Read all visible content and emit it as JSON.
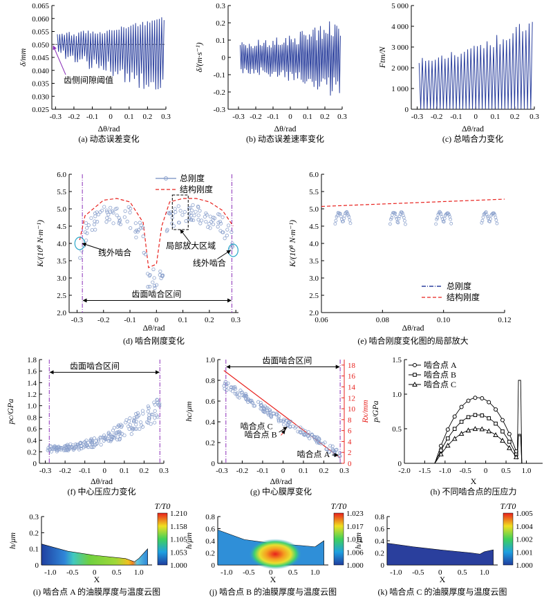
{
  "colors": {
    "series": "#2a3f9d",
    "structural": "#e8201c",
    "dashdot": "#8b2fb8",
    "cyan": "#2aa7c9",
    "axis": "#000000",
    "red_axis": "#e8201c"
  },
  "chart_data": [
    {
      "id": "a",
      "type": "line",
      "caption": "(a) 动态误差变化",
      "xlabel": "Δθ/rad",
      "ylabel": "δ/mm",
      "xlim": [
        -0.32,
        0.3
      ],
      "ylim": [
        0.025,
        0.065
      ],
      "xticks": [
        "-0.3",
        "-0.2",
        "-0.1",
        "0",
        "0.1",
        "0.2",
        "0.3"
      ],
      "yticks": [
        "0.025",
        "0.030",
        "0.035",
        "0.040",
        "0.045",
        "0.050",
        "0.055",
        "0.060",
        "0.065"
      ],
      "threshold": 0.05,
      "annotation": "齿侧间隙阈值",
      "range_x": [
        -0.29,
        0.29
      ],
      "upper_envelope": [
        0.055,
        0.061
      ],
      "lower_envelope": [
        0.045,
        0.027
      ]
    },
    {
      "id": "b",
      "type": "line",
      "caption": "(b) 动态误差速率变化",
      "xlabel": "Δθ/rad",
      "ylabel": "δ̇/(m·s⁻¹)",
      "xlim": [
        -0.36,
        0.3
      ],
      "ylim": [
        -0.3,
        0.3
      ],
      "xticks": [
        "-0.3",
        "-0.2",
        "-0.1",
        "0",
        "0.1",
        "0.2",
        "0.3"
      ],
      "yticks": [
        "-0.3",
        "-0.2",
        "-0.1",
        "0",
        "0.1",
        "0.2",
        "0.3"
      ],
      "range_x": [
        -0.29,
        0.29
      ],
      "amplitude": [
        0.1,
        0.25
      ]
    },
    {
      "id": "c",
      "type": "line",
      "caption": "(c) 总啮合力变化",
      "xlabel": "Δθ/rad",
      "ylabel": "Ftm/N",
      "xlim": [
        -0.33,
        0.3
      ],
      "ylim": [
        0,
        5000
      ],
      "xticks": [
        "-0.3",
        "-0.2",
        "-0.1",
        "0",
        "0.1",
        "0.2",
        "0.3"
      ],
      "yticks": [
        "0",
        "1 000",
        "2 000",
        "3 000",
        "4 000",
        "5 000"
      ],
      "range_x": [
        -0.29,
        0.29
      ],
      "peak_envelope": [
        2500,
        4500
      ]
    },
    {
      "id": "d",
      "type": "line",
      "caption": "(d) 啮合刚度变化",
      "xlabel": "Δθ/rad",
      "ylabel": "K/(10⁸ N·m⁻¹)",
      "xlim": [
        -0.33,
        0.31
      ],
      "ylim": [
        2.0,
        6.0
      ],
      "xticks": [
        "-0.3",
        "-0.2",
        "-0.1",
        "0",
        "0.1",
        "0.2",
        "0.3"
      ],
      "yticks": [
        "2.0",
        "2.5",
        "3.0",
        "3.5",
        "4.0",
        "4.5",
        "5.0",
        "5.5",
        "6.0"
      ],
      "legend": [
        "总刚度",
        "结构刚度"
      ],
      "annotations": [
        "线外啮合",
        "局部放大区域",
        "线外啮合",
        "齿面啮合区间"
      ],
      "mesh_interval": [
        -0.28,
        0.285
      ],
      "structural_x": [
        -0.29,
        -0.27,
        -0.2,
        -0.15,
        -0.1,
        -0.05,
        -0.03,
        0.0,
        0.02,
        0.05,
        0.1,
        0.15,
        0.2,
        0.25,
        0.29
      ],
      "structural_y": [
        4.1,
        4.8,
        5.25,
        5.3,
        5.2,
        4.6,
        3.3,
        3.4,
        4.5,
        5.2,
        5.3,
        5.3,
        5.2,
        4.95,
        4.5
      ]
    },
    {
      "id": "e",
      "type": "scatter",
      "caption": "(e) 啮合刚度变化图的局部放大",
      "xlabel": "Δθ/rad",
      "ylabel": "K/(10⁸ N·m⁻¹)",
      "xlim": [
        0.06,
        0.12
      ],
      "ylim": [
        2.0,
        6.0
      ],
      "xticks": [
        "0.06",
        "0.08",
        "0.10",
        "0.12"
      ],
      "yticks": [
        "2.0",
        "2.5",
        "3.0",
        "3.5",
        "4.0",
        "4.5",
        "5.0",
        "5.5",
        "6.0"
      ],
      "legend": [
        "总刚度",
        "结构刚度"
      ],
      "structural_line": [
        [
          0.06,
          5.07
        ],
        [
          0.12,
          5.28
        ]
      ],
      "clusters_x": [
        0.067,
        0.085,
        0.1,
        0.115
      ]
    },
    {
      "id": "f",
      "type": "scatter",
      "caption": "(f) 中心压应力变化",
      "xlabel": "Δθ/rad",
      "ylabel": "pc/GPa",
      "xlim": [
        -0.33,
        0.3
      ],
      "ylim": [
        0,
        1.8
      ],
      "xticks": [
        "-0.3",
        "-0.2",
        "-0.1",
        "0",
        "0.1",
        "0.2",
        "0.3"
      ],
      "yticks": [
        "0",
        "0.2",
        "0.4",
        "0.6",
        "0.8",
        "1.0",
        "1.2",
        "1.4",
        "1.6",
        "1.8"
      ],
      "annotation": "齿面啮合区间",
      "mesh_interval": [
        -0.28,
        0.28
      ]
    },
    {
      "id": "g",
      "type": "scatter",
      "caption": "(g) 中心膜厚变化",
      "xlabel": "Δθ/rad",
      "ylabel": "hc/μm",
      "ylabel_right": "Rx/mm",
      "xlim": [
        -0.32,
        0.3
      ],
      "ylim": [
        0,
        1.0
      ],
      "ylim_right": [
        0,
        19
      ],
      "xticks": [
        "-0.3",
        "-0.2",
        "-0.1",
        "0",
        "0.1",
        "0.2",
        "0.3"
      ],
      "yticks": [
        "0",
        "0.2",
        "0.4",
        "0.6",
        "0.8",
        "1.0"
      ],
      "yticks_right": [
        "0",
        "2",
        "4",
        "6",
        "8",
        "10",
        "12",
        "14",
        "16",
        "18"
      ],
      "annotations": [
        "齿面啮合区间",
        "啮合点 C",
        "啮合点 B",
        "啮合点 A"
      ],
      "mesh_interval": [
        -0.28,
        0.28
      ],
      "rx_line": [
        [
          -0.29,
          17.0
        ],
        [
          0.28,
          1.0
        ]
      ]
    },
    {
      "id": "h",
      "type": "line",
      "caption": "(h) 不同啮合点的压应力",
      "xlabel": "X",
      "ylabel": "p/GPa",
      "xlim": [
        -2.0,
        1.4
      ],
      "ylim": [
        0,
        1.5
      ],
      "xticks": [
        "-2.0",
        "-1.5",
        "-1.0",
        "-0.5",
        "0",
        "0.5",
        "1.0"
      ],
      "yticks": [
        "0",
        "0.5",
        "1.0",
        "1.5"
      ],
      "series": [
        {
          "name": "啮合点 A",
          "peak": 0.95,
          "spike": 1.2,
          "marker": "circle"
        },
        {
          "name": "啮合点 B",
          "peak": 0.7,
          "spike": 0.42,
          "marker": "square"
        },
        {
          "name": "啮合点 C",
          "peak": 0.5,
          "spike": 0.4,
          "marker": "triangle"
        }
      ]
    },
    {
      "id": "i",
      "type": "heatmap",
      "caption": "(i) 啮合点 A 的油膜厚度与温度云图",
      "xlabel": "X",
      "ylabel": "h/μm",
      "colorbar_title": "T/T0",
      "xlim": [
        -1.2,
        1.3
      ],
      "ylim": [
        0,
        0.3
      ],
      "xticks": [
        "-1.0",
        "-0.5",
        "0",
        "0.5",
        "1.0"
      ],
      "yticks": [
        "0",
        "0.1",
        "0.2",
        "0.3"
      ],
      "colorbar": [
        "1.210",
        "1.158",
        "1.105",
        "1.053",
        "1.000"
      ]
    },
    {
      "id": "j",
      "type": "heatmap",
      "caption": "(j) 啮合点 B 的油膜厚度与温度云图",
      "xlabel": "X",
      "ylabel": "h/μm",
      "colorbar_title": "T/T0",
      "xlim": [
        -1.2,
        1.3
      ],
      "ylim": [
        0,
        0.8
      ],
      "xticks": [
        "-1.0",
        "-0.5",
        "0",
        "0.5",
        "1.0"
      ],
      "yticks": [
        "0",
        "0.2",
        "0.4",
        "0.6",
        "0.8"
      ],
      "colorbar": [
        "1.023",
        "1.017",
        "1.011",
        "1.006",
        "1.000"
      ]
    },
    {
      "id": "k",
      "type": "heatmap",
      "caption": "(k) 啮合点 C 的油膜厚度与温度云图",
      "xlabel": "X",
      "ylabel": "h/μm",
      "colorbar_title": "T/T0",
      "xlim": [
        -1.2,
        1.3
      ],
      "ylim": [
        0,
        0.8
      ],
      "xticks": [
        "-1.0",
        "-0.5",
        "0",
        "0.5",
        "1.0"
      ],
      "yticks": [
        "0",
        "0.2",
        "0.4",
        "0.6",
        "0.8"
      ],
      "colorbar": [
        "1.005",
        "1.004",
        "1.002",
        "1.001",
        "1.000"
      ]
    }
  ]
}
